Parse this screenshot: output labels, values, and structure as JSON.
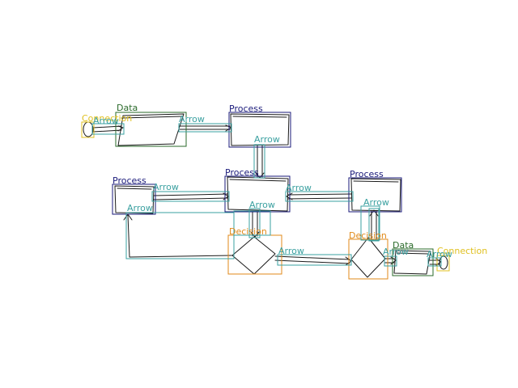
{
  "colors": {
    "process": "#1a1a7a",
    "data": "#2a6a2a",
    "decision": "#e08a1a",
    "connection": "#e0c020",
    "arrow": "#3aa0a0",
    "ink": "#1a1a1a"
  },
  "labels": {
    "connection_1": "Connection",
    "connection_2": "Connection",
    "data_1": "Data",
    "data_2": "Data",
    "process_1": "Process",
    "process_2": "Process",
    "process_3": "Process",
    "process_4": "Process",
    "decision_1": "Decision",
    "decision_2": "Decision",
    "arrow_1": "Arrow",
    "arrow_2": "Arrow",
    "arrow_3": "Arrow",
    "arrow_4": "Arrow",
    "arrow_5": "Arrow",
    "arrow_6": "Arrow",
    "arrow_7": "Arrow",
    "arrow_8": "Arrow",
    "arrow_9": "Arrow",
    "arrow_10": "Arrow",
    "arrow_11": "Arrow"
  }
}
